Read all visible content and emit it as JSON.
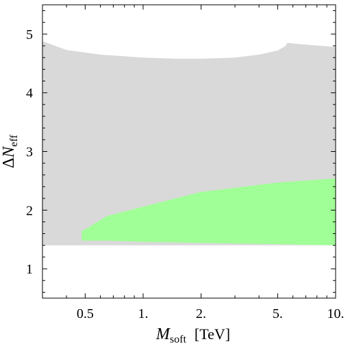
{
  "chart_data": {
    "type": "area",
    "x_scale": "log",
    "xlim": [
      0.3,
      10
    ],
    "ylim": [
      0.5,
      5.5
    ],
    "x_ticks": [
      {
        "value": 0.5,
        "label": "0.5"
      },
      {
        "value": 1,
        "label": "1."
      },
      {
        "value": 2,
        "label": "2."
      },
      {
        "value": 5,
        "label": "5."
      },
      {
        "value": 10,
        "label": "10."
      }
    ],
    "y_ticks": [
      {
        "value": 1,
        "label": "1"
      },
      {
        "value": 2,
        "label": "2"
      },
      {
        "value": 3,
        "label": "3"
      },
      {
        "value": 4,
        "label": "4"
      },
      {
        "value": 5,
        "label": "5"
      }
    ],
    "xlabel": {
      "symbol": "M",
      "subscript": "soft",
      "unit": "[TeV]"
    },
    "ylabel": {
      "prefix": "Δ",
      "symbol": "N",
      "subscript": "eff"
    },
    "grid": false,
    "regions": [
      {
        "color": "#d9d9d9",
        "x": [
          0.3,
          0.4,
          0.6,
          1.0,
          1.5,
          2.0,
          3.0,
          4.0,
          5.0,
          5.5,
          5.6,
          7.0,
          10.0
        ],
        "y_upper": [
          4.88,
          4.73,
          4.65,
          4.6,
          4.58,
          4.58,
          4.6,
          4.65,
          4.72,
          4.8,
          4.85,
          4.82,
          4.78
        ],
        "y_lower": [
          1.4,
          1.4,
          1.4,
          1.4,
          1.4,
          1.4,
          1.4,
          1.4,
          1.4,
          1.4,
          1.4,
          1.4,
          1.4
        ]
      },
      {
        "color": "#a0ff96",
        "x": [
          0.48,
          0.5,
          0.65,
          1.0,
          2.0,
          5.0,
          10.0
        ],
        "y_upper": [
          1.65,
          1.67,
          1.9,
          2.06,
          2.31,
          2.47,
          2.54
        ],
        "y_lower": [
          1.48,
          1.48,
          1.48,
          1.46,
          1.44,
          1.42,
          1.4
        ]
      }
    ]
  }
}
